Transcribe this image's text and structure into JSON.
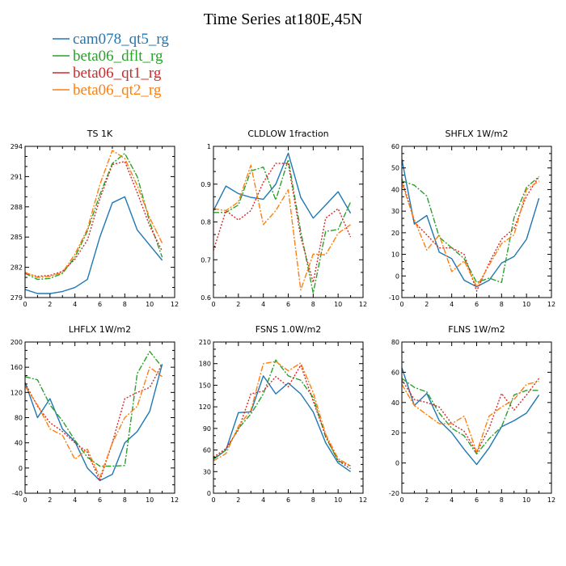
{
  "figure_title": "Time Series at180E,45N",
  "legend": [
    {
      "label": "cam078_qt5_rg",
      "color": "#1f77b4"
    },
    {
      "label": "beta06_dflt_rg",
      "color": "#2ca02c"
    },
    {
      "label": "beta06_qt1_rg",
      "color": "#d62728"
    },
    {
      "label": "beta06_qt2_rg",
      "color": "#ff7f0e"
    }
  ],
  "chart_data": [
    {
      "type": "line",
      "title": "TS   1K",
      "x": [
        0,
        1,
        2,
        3,
        4,
        5,
        6,
        7,
        8,
        9,
        10,
        11
      ],
      "xlim": [
        0,
        12
      ],
      "xticks": [
        0,
        2,
        4,
        6,
        8,
        10,
        12
      ],
      "ylim": [
        279,
        294
      ],
      "yticks": [
        279,
        282,
        285,
        288,
        291,
        294
      ],
      "series": [
        {
          "name": "cam078_qt5_rg",
          "color": "#1f77b4",
          "dash": "solid",
          "values": [
            279.8,
            279.4,
            279.4,
            279.6,
            280.0,
            280.8,
            285.0,
            288.4,
            289.0,
            285.7,
            284.2,
            282.7
          ]
        },
        {
          "name": "beta06_dflt_rg",
          "color": "#2ca02c",
          "dash": "dashdot",
          "values": [
            281.4,
            280.8,
            280.9,
            281.4,
            283.0,
            285.6,
            289.2,
            292.3,
            293.3,
            291.0,
            286.5,
            283.0
          ]
        },
        {
          "name": "beta06_qt1_rg",
          "color": "#d62728",
          "dash": "dot",
          "values": [
            281.4,
            281.1,
            281.2,
            281.6,
            282.8,
            284.7,
            288.8,
            292.2,
            292.5,
            289.4,
            286.1,
            283.6
          ]
        },
        {
          "name": "beta06_qt2_rg",
          "color": "#ff7f0e",
          "dash": "dashdot",
          "values": [
            281.5,
            281.0,
            281.1,
            281.5,
            283.3,
            285.8,
            290.2,
            293.6,
            292.8,
            290.1,
            286.9,
            284.4
          ]
        }
      ]
    },
    {
      "type": "line",
      "title": "CLDLOW   1fraction",
      "x": [
        0,
        1,
        2,
        3,
        4,
        5,
        6,
        7,
        8,
        9,
        10,
        11
      ],
      "xlim": [
        0,
        12
      ],
      "xticks": [
        0,
        2,
        4,
        6,
        8,
        10,
        12
      ],
      "ylim": [
        0.6,
        1.0
      ],
      "yticks": [
        0.6,
        0.7,
        0.8,
        0.9,
        1.0
      ],
      "series": [
        {
          "name": "cam078_qt5_rg",
          "color": "#1f77b4",
          "dash": "solid",
          "values": [
            0.83,
            0.895,
            0.875,
            0.865,
            0.86,
            0.9,
            0.982,
            0.865,
            0.81,
            0.845,
            0.88,
            0.823
          ]
        },
        {
          "name": "beta06_dflt_rg",
          "color": "#2ca02c",
          "dash": "dashdot",
          "values": [
            0.825,
            0.825,
            0.845,
            0.935,
            0.945,
            0.858,
            0.965,
            0.775,
            0.612,
            0.775,
            0.78,
            0.853
          ]
        },
        {
          "name": "beta06_qt1_rg",
          "color": "#d62728",
          "dash": "dot",
          "values": [
            0.725,
            0.83,
            0.805,
            0.83,
            0.905,
            0.955,
            0.955,
            0.76,
            0.64,
            0.81,
            0.835,
            0.76
          ]
        },
        {
          "name": "beta06_qt2_rg",
          "color": "#ff7f0e",
          "dash": "dashdot",
          "values": [
            0.835,
            0.83,
            0.853,
            0.95,
            0.793,
            0.83,
            0.885,
            0.62,
            0.715,
            0.713,
            0.77,
            0.793
          ]
        }
      ]
    },
    {
      "type": "line",
      "title": "SHFLX   1W/m2",
      "x": [
        0,
        1,
        2,
        3,
        4,
        5,
        6,
        7,
        8,
        9,
        10,
        11
      ],
      "xlim": [
        0,
        12
      ],
      "xticks": [
        0,
        2,
        4,
        6,
        8,
        10,
        12
      ],
      "ylim": [
        -10,
        60
      ],
      "yticks": [
        -10,
        0,
        10,
        20,
        30,
        40,
        50,
        60
      ],
      "series": [
        {
          "name": "cam078_qt5_rg",
          "color": "#1f77b4",
          "dash": "solid",
          "values": [
            54,
            24,
            28,
            11,
            8,
            -2,
            -5,
            -2,
            6,
            9,
            17,
            36
          ]
        },
        {
          "name": "beta06_dflt_rg",
          "color": "#2ca02c",
          "dash": "dashdot",
          "values": [
            44,
            42,
            37,
            18,
            13,
            8,
            -3,
            -1,
            -3,
            27,
            41,
            46
          ]
        },
        {
          "name": "beta06_qt1_rg",
          "color": "#d62728",
          "dash": "dot",
          "values": [
            45,
            25,
            19,
            13,
            13,
            10,
            -7,
            6,
            17,
            22,
            37,
            46
          ]
        },
        {
          "name": "beta06_qt2_rg",
          "color": "#ff7f0e",
          "dash": "dashdot",
          "values": [
            43,
            26,
            12,
            19,
            2,
            7,
            -5,
            5,
            15,
            19,
            40,
            44
          ]
        }
      ]
    },
    {
      "type": "line",
      "title": "LHFLX   1W/m2",
      "x": [
        0,
        1,
        2,
        3,
        4,
        5,
        6,
        7,
        8,
        9,
        10,
        11
      ],
      "xlim": [
        0,
        12
      ],
      "xticks": [
        0,
        2,
        4,
        6,
        8,
        10,
        12
      ],
      "ylim": [
        -40,
        200
      ],
      "yticks": [
        -40,
        0,
        40,
        80,
        120,
        160,
        200
      ],
      "series": [
        {
          "name": "cam078_qt5_rg",
          "color": "#1f77b4",
          "dash": "solid",
          "values": [
            136,
            80,
            110,
            62,
            42,
            0,
            -20,
            -10,
            40,
            58,
            90,
            165
          ]
        },
        {
          "name": "beta06_dflt_rg",
          "color": "#2ca02c",
          "dash": "dashdot",
          "values": [
            145,
            140,
            100,
            75,
            44,
            17,
            3,
            3,
            4,
            150,
            185,
            160
          ]
        },
        {
          "name": "beta06_qt1_rg",
          "color": "#d62728",
          "dash": "dot",
          "values": [
            135,
            98,
            72,
            58,
            40,
            25,
            -20,
            40,
            110,
            120,
            128,
            165
          ]
        },
        {
          "name": "beta06_qt2_rg",
          "color": "#ff7f0e",
          "dash": "dashdot",
          "values": [
            130,
            100,
            62,
            52,
            14,
            30,
            -15,
            40,
            80,
            98,
            160,
            145
          ]
        }
      ]
    },
    {
      "type": "line",
      "title": "FSNS   1.0W/m2",
      "x": [
        0,
        1,
        2,
        3,
        4,
        5,
        6,
        7,
        8,
        9,
        10,
        11
      ],
      "xlim": [
        0,
        12
      ],
      "xticks": [
        0,
        2,
        4,
        6,
        8,
        10,
        12
      ],
      "ylim": [
        0,
        210
      ],
      "yticks": [
        0,
        30,
        60,
        90,
        120,
        150,
        180,
        210
      ],
      "series": [
        {
          "name": "cam078_qt5_rg",
          "color": "#1f77b4",
          "dash": "solid",
          "values": [
            47,
            60,
            112,
            113,
            163,
            138,
            153,
            138,
            113,
            70,
            42,
            30
          ]
        },
        {
          "name": "beta06_dflt_rg",
          "color": "#2ca02c",
          "dash": "dashdot",
          "values": [
            48,
            60,
            90,
            110,
            138,
            185,
            163,
            157,
            133,
            78,
            45,
            38
          ]
        },
        {
          "name": "beta06_qt1_rg",
          "color": "#d62728",
          "dash": "dot",
          "values": [
            50,
            62,
            88,
            138,
            142,
            162,
            148,
            178,
            128,
            80,
            45,
            34
          ]
        },
        {
          "name": "beta06_qt2_rg",
          "color": "#ff7f0e",
          "dash": "dashdot",
          "values": [
            45,
            55,
            93,
            115,
            180,
            183,
            170,
            181,
            140,
            82,
            48,
            38
          ]
        }
      ]
    },
    {
      "type": "line",
      "title": "FLNS   1W/m2",
      "x": [
        0,
        1,
        2,
        3,
        4,
        5,
        6,
        7,
        8,
        9,
        10,
        11
      ],
      "xlim": [
        0,
        12
      ],
      "xticks": [
        0,
        2,
        4,
        6,
        8,
        10,
        12
      ],
      "ylim": [
        -20,
        80
      ],
      "yticks": [
        -20,
        0,
        20,
        40,
        60,
        80
      ],
      "series": [
        {
          "name": "cam078_qt5_rg",
          "color": "#1f77b4",
          "dash": "solid",
          "values": [
            63,
            38,
            46,
            28,
            20,
            9,
            -1,
            10,
            24,
            28,
            33,
            45
          ]
        },
        {
          "name": "beta06_dflt_rg",
          "color": "#2ca02c",
          "dash": "dashdot",
          "values": [
            56,
            50,
            47,
            33,
            23,
            18,
            6,
            16,
            24,
            45,
            48,
            48
          ]
        },
        {
          "name": "beta06_qt1_rg",
          "color": "#d62728",
          "dash": "dot",
          "values": [
            55,
            42,
            40,
            37,
            26,
            21,
            7,
            23,
            46,
            35,
            45,
            56
          ]
        },
        {
          "name": "beta06_qt2_rg",
          "color": "#ff7f0e",
          "dash": "dashdot",
          "values": [
            52,
            38,
            32,
            26,
            26,
            31,
            7,
            31,
            37,
            42,
            52,
            54
          ]
        }
      ]
    }
  ]
}
